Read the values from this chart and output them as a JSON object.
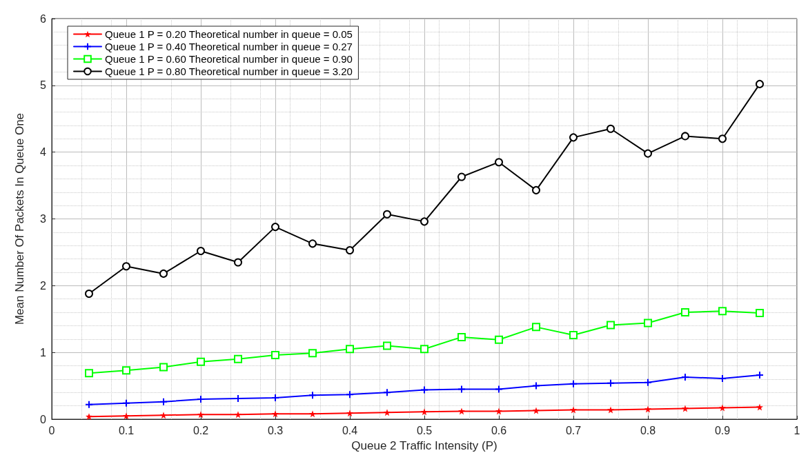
{
  "chart_data": {
    "type": "line",
    "xlabel": "Queue 2 Traffic Intensity (P)",
    "ylabel": "Mean Number Of Packets In Queue One",
    "x": [
      0.05,
      0.1,
      0.15,
      0.2,
      0.25,
      0.3,
      0.35,
      0.4,
      0.45,
      0.5,
      0.55,
      0.6,
      0.65,
      0.7,
      0.75,
      0.8,
      0.85,
      0.9,
      0.95
    ],
    "series": [
      {
        "name": "Queue 1 P = 0.20 Theoretical number in queue = 0.05",
        "color": "#ff0000",
        "marker": "star",
        "values": [
          0.04,
          0.05,
          0.06,
          0.07,
          0.07,
          0.08,
          0.08,
          0.09,
          0.1,
          0.11,
          0.12,
          0.12,
          0.13,
          0.14,
          0.14,
          0.15,
          0.16,
          0.17,
          0.18
        ]
      },
      {
        "name": "Queue 1 P = 0.40 Theoretical number in queue = 0.27",
        "color": "#0000ff",
        "marker": "cross",
        "values": [
          0.22,
          0.24,
          0.26,
          0.3,
          0.31,
          0.32,
          0.36,
          0.37,
          0.4,
          0.44,
          0.45,
          0.45,
          0.5,
          0.53,
          0.54,
          0.55,
          0.63,
          0.61,
          0.66
        ]
      },
      {
        "name": "Queue 1 P = 0.60 Theoretical number in queue = 0.90",
        "color": "#00ff00",
        "marker": "square",
        "values": [
          0.69,
          0.73,
          0.78,
          0.86,
          0.9,
          0.96,
          0.99,
          1.05,
          1.1,
          1.05,
          1.23,
          1.19,
          1.38,
          1.26,
          1.41,
          1.44,
          1.6,
          1.62,
          1.59
        ]
      },
      {
        "name": "Queue 1 P = 0.80 Theoretical number in queue = 3.20",
        "color": "#000000",
        "marker": "circle",
        "values": [
          1.88,
          2.29,
          2.18,
          2.52,
          2.35,
          2.88,
          2.63,
          2.53,
          3.07,
          2.96,
          3.63,
          3.85,
          3.43,
          4.22,
          4.35,
          3.98,
          4.24,
          4.2,
          5.02
        ]
      }
    ],
    "xlim": [
      0,
      1
    ],
    "xticks": [
      0,
      0.1,
      0.2,
      0.3,
      0.4,
      0.5,
      0.6,
      0.7,
      0.8,
      0.9,
      1
    ],
    "ylim": [
      0,
      6
    ],
    "yticks": [
      0,
      1,
      2,
      3,
      4,
      5,
      6
    ],
    "grid": true,
    "legend": "top left",
    "line_style": "solid"
  }
}
